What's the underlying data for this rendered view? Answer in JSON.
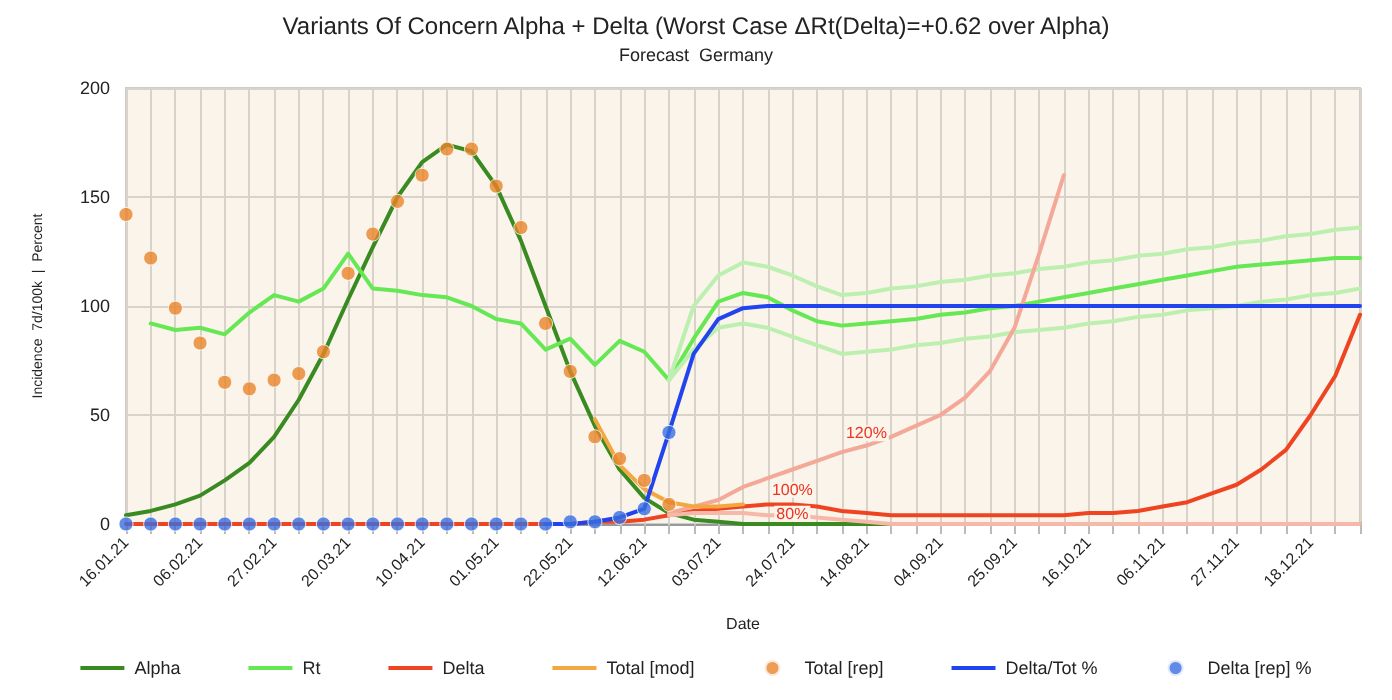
{
  "chart_data": {
    "type": "line",
    "title": "Variants Of Concern Alpha + Delta (Worst Case ΔRt(Delta)=+0.62 over Alpha)",
    "subtitle": "Forecast  Germany",
    "xlabel": "Date",
    "ylabel": "Incidence  7d/100k  |  Percent",
    "categories": [
      "16.01.21",
      null,
      null,
      "06.02.21",
      null,
      null,
      "27.02.21",
      null,
      null,
      "20.03.21",
      null,
      null,
      "10.04.21",
      null,
      null,
      "01.05.21",
      null,
      null,
      "22.05.21",
      null,
      null,
      "12.06.21",
      null,
      null,
      "03.07.21",
      null,
      null,
      "24.07.21",
      null,
      null,
      "14.08.21",
      null,
      null,
      "04.09.21",
      null,
      null,
      "25.09.21",
      null,
      null,
      "16.10.21",
      null,
      null,
      "06.11.21",
      null,
      null,
      "27.11.21",
      null,
      null,
      "18.12.21",
      null,
      null
    ],
    "series": [
      {
        "name": "Alpha",
        "marker": "none",
        "color": "#3a8a22",
        "values": [
          4,
          6,
          9,
          13,
          20,
          28,
          40,
          57,
          78,
          103,
          127,
          150,
          166,
          174,
          171,
          155,
          130,
          100,
          70,
          45,
          25,
          12,
          5,
          2,
          1,
          0,
          0,
          0,
          0,
          0,
          0,
          0,
          0,
          0,
          0,
          0,
          0,
          0,
          0,
          0,
          0,
          0,
          0,
          0,
          0,
          0,
          0,
          0,
          0,
          0,
          0
        ]
      },
      {
        "name": "Rt",
        "marker": "none",
        "color": "#66e855",
        "values": [
          null,
          92,
          89,
          90,
          87,
          97,
          105,
          102,
          108,
          124,
          108,
          107,
          105,
          104,
          100,
          94,
          92,
          80,
          85,
          73,
          84,
          79,
          66,
          85,
          102,
          106,
          104,
          98,
          93,
          91,
          92,
          93,
          94,
          96,
          97,
          99,
          100,
          102,
          104,
          106,
          108,
          110,
          112,
          114,
          116,
          118,
          119,
          120,
          121,
          122,
          122
        ]
      },
      {
        "marker": "none",
        "color": "#bdf0b0",
        "values": [
          null,
          null,
          null,
          null,
          null,
          null,
          null,
          null,
          null,
          null,
          null,
          null,
          null,
          null,
          null,
          null,
          null,
          null,
          null,
          null,
          null,
          null,
          66,
          100,
          114,
          120,
          118,
          114,
          109,
          105,
          106,
          108,
          109,
          111,
          112,
          114,
          115,
          117,
          118,
          120,
          121,
          123,
          124,
          126,
          127,
          129,
          130,
          132,
          133,
          135,
          136
        ]
      },
      {
        "marker": "none",
        "color": "#bdf0b0",
        "values": [
          null,
          null,
          null,
          null,
          null,
          null,
          null,
          null,
          null,
          null,
          null,
          null,
          null,
          null,
          null,
          null,
          null,
          null,
          null,
          null,
          null,
          null,
          66,
          80,
          90,
          92,
          90,
          86,
          82,
          78,
          79,
          80,
          82,
          83,
          85,
          86,
          88,
          89,
          90,
          92,
          93,
          95,
          96,
          98,
          99,
          100,
          102,
          103,
          105,
          106,
          108
        ]
      },
      {
        "name": "Delta",
        "marker": "none",
        "color": "#ee4422",
        "values": [
          0,
          0,
          0,
          0,
          0,
          0,
          0,
          0,
          0,
          0,
          0,
          0,
          0,
          0,
          0,
          0,
          0,
          0,
          0,
          1,
          1,
          2,
          4,
          6,
          7,
          8,
          9,
          9,
          8,
          6,
          5,
          4,
          4,
          4,
          4,
          4,
          4,
          4,
          4,
          5,
          5,
          6,
          8,
          10,
          14,
          18,
          25,
          34,
          50,
          68,
          96
        ]
      },
      {
        "marker": "none",
        "color": "#f4a898",
        "values": [
          null,
          null,
          null,
          null,
          null,
          null,
          null,
          null,
          null,
          null,
          null,
          null,
          null,
          null,
          null,
          null,
          null,
          null,
          null,
          null,
          null,
          null,
          5,
          8,
          11,
          17,
          21,
          25,
          29,
          33,
          36,
          40,
          45,
          50,
          58,
          70,
          90,
          124,
          160,
          null,
          null,
          null,
          null,
          null,
          null,
          null,
          null,
          null,
          null,
          null,
          null
        ]
      },
      {
        "marker": "none",
        "color": "#f6b8a8",
        "values": [
          null,
          null,
          null,
          null,
          null,
          null,
          null,
          null,
          null,
          null,
          null,
          null,
          null,
          null,
          null,
          null,
          null,
          null,
          null,
          null,
          null,
          null,
          4,
          5,
          5,
          5,
          4,
          4,
          3,
          2,
          1,
          0,
          0,
          0,
          0,
          0,
          0,
          0,
          0,
          0,
          0,
          0,
          0,
          0,
          0,
          0,
          0,
          0,
          0,
          0,
          0
        ]
      },
      {
        "name": "Total [mod]",
        "marker": "none",
        "color": "#f4a640",
        "values": [
          null,
          null,
          null,
          null,
          null,
          null,
          null,
          null,
          null,
          null,
          null,
          null,
          null,
          null,
          null,
          null,
          null,
          null,
          null,
          48,
          27,
          16,
          10,
          8,
          8,
          9,
          null,
          null,
          null,
          null,
          null,
          null,
          null,
          null,
          null,
          null,
          null,
          null,
          null,
          null,
          null,
          null,
          null,
          null,
          null,
          null,
          null,
          null,
          null,
          null,
          null
        ]
      },
      {
        "name": "Total [rep]",
        "type": "scatter",
        "marker": "circle",
        "color": "#e8842a",
        "values": [
          142,
          122,
          99,
          83,
          65,
          62,
          66,
          69,
          79,
          115,
          133,
          148,
          160,
          172,
          172,
          155,
          136,
          92,
          70,
          40,
          30,
          20,
          9,
          null,
          null,
          null,
          null,
          null,
          null,
          null,
          null,
          null,
          null,
          null,
          null,
          null,
          null,
          null,
          null,
          null,
          null,
          null,
          null,
          null,
          null,
          null,
          null,
          null,
          null,
          null,
          null
        ]
      },
      {
        "name": "Delta/Tot %",
        "marker": "none",
        "color": "#2244ee",
        "values": [
          null,
          null,
          null,
          null,
          null,
          null,
          null,
          null,
          null,
          null,
          null,
          null,
          null,
          null,
          null,
          null,
          null,
          0,
          0,
          1,
          3,
          7,
          42,
          78,
          94,
          99,
          100,
          100,
          100,
          100,
          100,
          100,
          100,
          100,
          100,
          100,
          100,
          100,
          100,
          100,
          100,
          100,
          100,
          100,
          100,
          100,
          100,
          100,
          100,
          100,
          100
        ]
      },
      {
        "name": "Delta [rep] %",
        "type": "scatter",
        "marker": "circle",
        "color": "#3a6ee0",
        "values": [
          0,
          0,
          0,
          0,
          0,
          0,
          0,
          0,
          0,
          0,
          0,
          0,
          0,
          0,
          0,
          0,
          0,
          0,
          1,
          1,
          3,
          7,
          42,
          null,
          null,
          null,
          null,
          null,
          null,
          null,
          null,
          null,
          null,
          null,
          null,
          null,
          null,
          null,
          null,
          null,
          null,
          null,
          null,
          null,
          null,
          null,
          null,
          null,
          null,
          null,
          null
        ]
      }
    ],
    "annotations": [
      {
        "text": "120%",
        "x": "14.08.21",
        "y": 38
      },
      {
        "text": "100%",
        "x": "24.07.21",
        "y": 12
      },
      {
        "text": "80%",
        "x": "24.07.21",
        "y": 1
      }
    ],
    "ylim": [
      0,
      200
    ],
    "yticks": [
      0,
      50,
      100,
      150,
      200
    ],
    "grid": true,
    "legend": "bottom"
  }
}
